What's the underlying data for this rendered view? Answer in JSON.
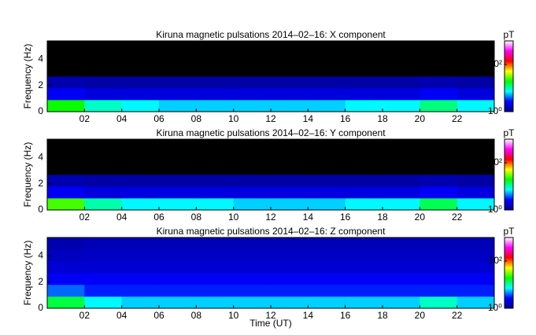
{
  "chart_data": [
    {
      "type": "spectrogram",
      "title": "Kiruna magnetic pulsations 2014–02–16: X component",
      "ylabel": "Frequency (Hz)",
      "x_bins": [
        0,
        2,
        4,
        6,
        8,
        10,
        12,
        14,
        16,
        18,
        20,
        22,
        24
      ],
      "y_bins": [
        0,
        0.9,
        1.8,
        2.7,
        3.6,
        4.5,
        5.4
      ],
      "values": [
        [
          20,
          9,
          7,
          6,
          6,
          6,
          6,
          6,
          7,
          7,
          12,
          7
        ],
        [
          2.5,
          2,
          2,
          2,
          2,
          2,
          2,
          2,
          2,
          2,
          2.5,
          2
        ],
        [
          1.3,
          1.2,
          1.2,
          1.2,
          1.2,
          1.2,
          1.2,
          1.2,
          1.2,
          1.2,
          1.3,
          1.2
        ],
        [
          0.5,
          0.5,
          0.5,
          0.5,
          0.5,
          0.5,
          0.5,
          0.5,
          0.5,
          0.5,
          0.5,
          0.5
        ],
        [
          0.5,
          0.5,
          0.5,
          0.5,
          0.5,
          0.5,
          0.5,
          0.5,
          0.5,
          0.5,
          0.5,
          0.5
        ],
        [
          0.5,
          0.5,
          0.5,
          0.5,
          0.5,
          0.5,
          0.5,
          0.5,
          0.5,
          0.5,
          0.5,
          0.5
        ]
      ],
      "xlim": [
        0,
        24
      ],
      "xticks": [
        {
          "value": 2,
          "label": "02"
        },
        {
          "value": 4,
          "label": "04"
        },
        {
          "value": 6,
          "label": "06"
        },
        {
          "value": 8,
          "label": "08"
        },
        10,
        12,
        14,
        16,
        18,
        20,
        22
      ],
      "ylim": [
        0,
        5.4
      ],
      "yticks": [
        0,
        2,
        4
      ],
      "colorbar_label": "pT",
      "clim": [
        1,
        1000
      ],
      "color_scale": "log",
      "cticks": [
        {
          "value": 1,
          "label": "10⁰"
        },
        {
          "value": 100,
          "label": "10²"
        }
      ],
      "colormap": [
        "#000090",
        "#0000ff",
        "#00ffff",
        "#00ff00",
        "#ffff00",
        "#ff0000",
        "#ff00ff",
        "#ffffff"
      ]
    },
    {
      "type": "spectrogram",
      "title": "Kiruna magnetic pulsations 2014–02–16: Y component",
      "ylabel": "Frequency (Hz)",
      "x_bins": [
        0,
        2,
        4,
        6,
        8,
        10,
        12,
        14,
        16,
        18,
        20,
        22,
        24
      ],
      "y_bins": [
        0,
        0.9,
        1.8,
        2.7,
        3.6,
        4.5,
        5.4
      ],
      "values": [
        [
          25,
          10,
          7,
          7,
          7,
          6,
          6,
          6,
          7,
          7,
          14,
          7
        ],
        [
          2.5,
          2,
          2,
          2,
          2,
          2,
          2,
          2,
          2,
          2,
          2.5,
          2
        ],
        [
          1.3,
          1.2,
          1.2,
          1.2,
          1.2,
          1.2,
          1.2,
          1.2,
          1.2,
          1.2,
          1.3,
          1.2
        ],
        [
          0.5,
          0.5,
          0.5,
          0.5,
          0.5,
          0.5,
          0.5,
          0.5,
          0.5,
          0.5,
          0.5,
          0.5
        ],
        [
          0.5,
          0.5,
          0.5,
          0.5,
          0.5,
          0.5,
          0.5,
          0.5,
          0.5,
          0.5,
          0.5,
          0.5
        ],
        [
          0.5,
          0.5,
          0.5,
          0.5,
          0.5,
          0.5,
          0.5,
          0.5,
          0.5,
          0.5,
          0.5,
          0.5
        ]
      ],
      "xlim": [
        0,
        24
      ],
      "xticks": [
        {
          "value": 2,
          "label": "02"
        },
        {
          "value": 4,
          "label": "04"
        },
        {
          "value": 6,
          "label": "06"
        },
        {
          "value": 8,
          "label": "08"
        },
        10,
        12,
        14,
        16,
        18,
        20,
        22
      ],
      "ylim": [
        0,
        5.4
      ],
      "yticks": [
        0,
        2,
        4
      ],
      "colorbar_label": "pT",
      "clim": [
        1,
        1000
      ],
      "color_scale": "log",
      "cticks": [
        {
          "value": 1,
          "label": "10⁰"
        },
        {
          "value": 100,
          "label": "10²"
        }
      ],
      "colormap": [
        "#000090",
        "#0000ff",
        "#00ffff",
        "#00ff00",
        "#ffff00",
        "#ff0000",
        "#ff00ff",
        "#ffffff"
      ]
    },
    {
      "type": "spectrogram",
      "title": "Kiruna magnetic pulsations 2014–02–16: Z component",
      "ylabel": "Frequency (Hz)",
      "xlabel": "Time (UT)",
      "x_bins": [
        0,
        2,
        4,
        6,
        8,
        10,
        12,
        14,
        16,
        18,
        20,
        22,
        24
      ],
      "y_bins": [
        0,
        0.9,
        1.8,
        2.7,
        3.6,
        4.5,
        5.4
      ],
      "values": [
        [
          15,
          7,
          6,
          6,
          6,
          6,
          6,
          6,
          6,
          6,
          9,
          6
        ],
        [
          4,
          3,
          3,
          3,
          3,
          3,
          3,
          3,
          3,
          3,
          3,
          3
        ],
        [
          2.5,
          2.5,
          2.5,
          2.5,
          2.5,
          2.5,
          2.5,
          2.5,
          2.5,
          2.5,
          2.5,
          2.5
        ],
        [
          1.8,
          1.8,
          1.8,
          1.8,
          1.8,
          1.8,
          1.8,
          1.8,
          1.8,
          1.8,
          1.8,
          1.8
        ],
        [
          1.5,
          1.6,
          1.6,
          1.6,
          1.6,
          1.6,
          1.6,
          1.6,
          1.6,
          1.6,
          1.6,
          1.6
        ],
        [
          1.3,
          1.4,
          1.4,
          1.4,
          1.4,
          1.4,
          1.4,
          1.4,
          1.4,
          1.4,
          1.4,
          1.4
        ]
      ],
      "xlim": [
        0,
        24
      ],
      "xticks": [
        {
          "value": 2,
          "label": "02"
        },
        {
          "value": 4,
          "label": "04"
        },
        {
          "value": 6,
          "label": "06"
        },
        {
          "value": 8,
          "label": "08"
        },
        10,
        12,
        14,
        16,
        18,
        20,
        22
      ],
      "ylim": [
        0,
        5.4
      ],
      "yticks": [
        0,
        2,
        4
      ],
      "colorbar_label": "pT",
      "clim": [
        1,
        1000
      ],
      "color_scale": "log",
      "cticks": [
        {
          "value": 1,
          "label": "10⁰"
        },
        {
          "value": 100,
          "label": "10²"
        }
      ],
      "colormap": [
        "#000090",
        "#0000ff",
        "#00ffff",
        "#00ff00",
        "#ffff00",
        "#ff0000",
        "#ff00ff",
        "#ffffff"
      ]
    }
  ]
}
